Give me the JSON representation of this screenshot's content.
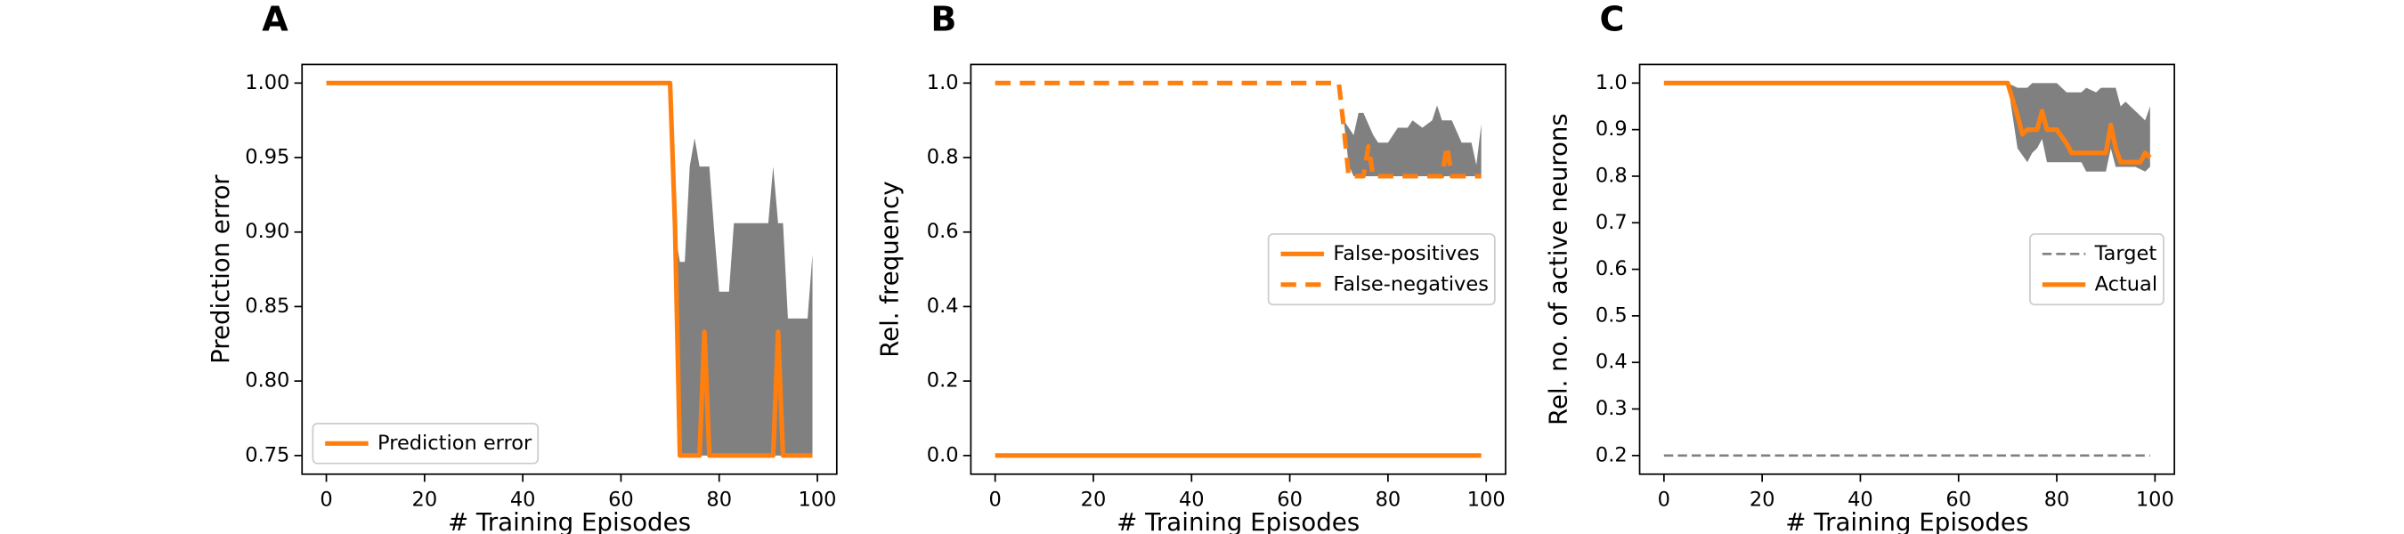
{
  "chart_data": [
    {
      "type": "line",
      "panel_label": "A",
      "xlabel": "# Training Episodes",
      "ylabel": "Prediction error",
      "xlim": [
        -4.95,
        103.95
      ],
      "xticks": [
        0,
        20,
        40,
        60,
        80,
        100
      ],
      "ylim": [
        0.7375,
        1.0125
      ],
      "yticks": [
        {
          "value": 0.75,
          "label": "0.75"
        },
        {
          "value": 0.8,
          "label": "0.80"
        },
        0.85,
        {
          "value": 0.9,
          "label": "0.90"
        },
        0.95,
        {
          "value": 1,
          "label": "1.00"
        }
      ],
      "legend": "lower left",
      "band": {
        "color": "#808080",
        "x": [
          70,
          71,
          72,
          73,
          74,
          75,
          76,
          78,
          79,
          80,
          82,
          83,
          90,
          91,
          92,
          93,
          94,
          96,
          97,
          98,
          99
        ],
        "upper": [
          1,
          0.9,
          0.88,
          0.88,
          0.944,
          0.963,
          0.944,
          0.944,
          0.9,
          0.86,
          0.86,
          0.906,
          0.906,
          0.944,
          0.906,
          0.906,
          0.842,
          0.842,
          0.842,
          0.842,
          0.885
        ],
        "lower": [
          1,
          0.9,
          0.75,
          0.75,
          0.75,
          0.75,
          0.75,
          0.75,
          0.75,
          0.75,
          0.75,
          0.75,
          0.75,
          0.75,
          0.75,
          0.75,
          0.75,
          0.75,
          0.75,
          0.75,
          0.75
        ]
      },
      "series": [
        {
          "name": "Prediction error",
          "color": "#ff7f0e",
          "style": "solid",
          "x": [
            0,
            70,
            71,
            72,
            76,
            77,
            78,
            91,
            92,
            93,
            99
          ],
          "values": [
            1,
            1,
            0.905,
            0.75,
            0.75,
            0.833,
            0.75,
            0.75,
            0.833,
            0.75,
            0.75
          ]
        }
      ]
    },
    {
      "type": "line",
      "panel_label": "B",
      "xlabel": "# Training Episodes",
      "ylabel": "Rel. frequency",
      "xlim": [
        -4.95,
        103.95
      ],
      "xticks": [
        0,
        20,
        40,
        60,
        80,
        100
      ],
      "ylim": [
        -0.05,
        1.05
      ],
      "yticks": [
        {
          "value": 0,
          "label": "0.0"
        },
        0.2,
        0.4,
        0.6,
        0.8,
        {
          "value": 1,
          "label": "1.0"
        }
      ],
      "legend": "center right",
      "band": {
        "color": "#808080",
        "x": [
          70,
          71,
          72,
          73,
          74,
          75,
          77,
          78,
          80,
          82,
          84,
          85,
          87,
          89,
          90,
          91,
          93,
          95,
          97,
          98,
          99
        ],
        "upper": [
          1,
          0.9,
          0.88,
          0.86,
          0.92,
          0.92,
          0.86,
          0.84,
          0.84,
          0.88,
          0.88,
          0.9,
          0.88,
          0.9,
          0.94,
          0.9,
          0.9,
          0.84,
          0.84,
          0.78,
          0.89
        ],
        "lower": [
          1,
          0.9,
          0.78,
          0.75,
          0.75,
          0.75,
          0.75,
          0.75,
          0.75,
          0.75,
          0.75,
          0.75,
          0.75,
          0.75,
          0.75,
          0.75,
          0.75,
          0.75,
          0.75,
          0.75,
          0.75
        ]
      },
      "series": [
        {
          "name": "False-positives",
          "color": "#ff7f0e",
          "style": "solid",
          "x": [
            0,
            99
          ],
          "values": [
            0,
            0
          ]
        },
        {
          "name": "False-negatives",
          "color": "#ff7f0e",
          "style": "dashed",
          "x": [
            0,
            70,
            71,
            72,
            75,
            76,
            77,
            91,
            92,
            93,
            99
          ],
          "values": [
            1,
            1,
            0.88,
            0.75,
            0.75,
            0.83,
            0.75,
            0.75,
            0.83,
            0.75,
            0.75
          ]
        }
      ]
    },
    {
      "type": "line",
      "panel_label": "C",
      "xlabel": "# Training Episodes",
      "ylabel": "Rel. no. of active neurons",
      "xlim": [
        -4.95,
        103.95
      ],
      "xticks": [
        0,
        20,
        40,
        60,
        80,
        100
      ],
      "ylim": [
        0.16,
        1.04
      ],
      "yticks": [
        0.2,
        0.3,
        0.4,
        0.5,
        0.6,
        0.7,
        0.8,
        0.9,
        {
          "value": 1,
          "label": "1.0"
        }
      ],
      "legend": "center right",
      "band": {
        "color": "#808080",
        "x": [
          70,
          72,
          74,
          75,
          76,
          77,
          78,
          80,
          82,
          84,
          85,
          86,
          88,
          89,
          90,
          91,
          92,
          93,
          94,
          96,
          98,
          99
        ],
        "upper": [
          1,
          0.99,
          0.99,
          1,
          1,
          1,
          1,
          1,
          0.98,
          0.98,
          0.98,
          0.99,
          0.98,
          0.99,
          0.99,
          0.99,
          0.99,
          0.95,
          0.96,
          0.94,
          0.92,
          0.95
        ],
        "lower": [
          1,
          0.86,
          0.83,
          0.85,
          0.86,
          0.88,
          0.83,
          0.83,
          0.83,
          0.83,
          0.83,
          0.81,
          0.81,
          0.81,
          0.81,
          0.86,
          0.82,
          0.82,
          0.82,
          0.82,
          0.81,
          0.82
        ]
      },
      "series": [
        {
          "name": "Target",
          "color": "#7f7f7f",
          "style": "thin-dashed",
          "x": [
            0,
            99
          ],
          "values": [
            0.2,
            0.2
          ]
        },
        {
          "name": "Actual",
          "color": "#ff7f0e",
          "style": "solid",
          "x": [
            0,
            70,
            72,
            73,
            74,
            76,
            77,
            78,
            80,
            82,
            83,
            89,
            90,
            91,
            92,
            93,
            97,
            98,
            99
          ],
          "values": [
            1,
            1,
            0.93,
            0.89,
            0.9,
            0.9,
            0.94,
            0.9,
            0.9,
            0.87,
            0.85,
            0.85,
            0.85,
            0.91,
            0.86,
            0.83,
            0.83,
            0.85,
            0.84
          ]
        }
      ]
    }
  ]
}
